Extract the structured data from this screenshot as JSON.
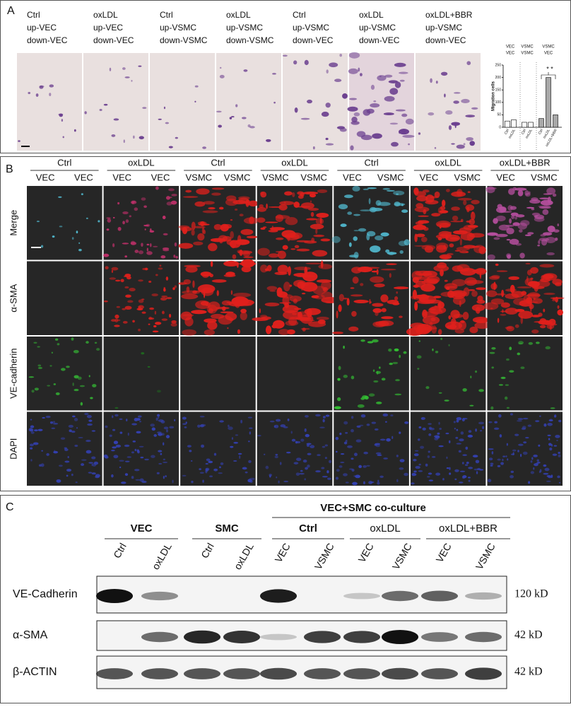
{
  "panel_a": {
    "label": "A",
    "columns": [
      [
        "Ctrl",
        "up-VEC",
        "down-VEC"
      ],
      [
        "oxLDL",
        "up-VEC",
        "down-VEC"
      ],
      [
        "Ctrl",
        "up-VSMC",
        "down-VSMC"
      ],
      [
        "oxLDL",
        "up-VSMC",
        "down-VSMC"
      ],
      [
        "Ctrl",
        "up-VSMC",
        "down-VEC"
      ],
      [
        "oxLDL",
        "up-VSMC",
        "down-VEC"
      ],
      [
        "oxLDL+BBR",
        "up-VSMC",
        "down-VEC"
      ]
    ],
    "chart": {
      "type": "bar",
      "groups": [
        [
          "VEC",
          "VEC"
        ],
        [
          "VSMC",
          "VSMC"
        ],
        [
          "VSMC",
          "VEC"
        ]
      ],
      "ylabel": "Migration cells",
      "ylim": [
        0,
        250
      ],
      "yticks": [
        0,
        50,
        100,
        150,
        200,
        250
      ],
      "categories": [
        "Ctrl",
        "oxLDL",
        "Ctrl",
        "oxLDL",
        "Ctrl",
        "oxLDL",
        "oxLDL+BBR"
      ],
      "values": [
        25,
        30,
        20,
        20,
        35,
        200,
        50
      ],
      "colors": [
        "#ffffff",
        "#ffffff",
        "#ffffff",
        "#ffffff",
        "#a8a8a8",
        "#a8a8a8",
        "#a8a8a8"
      ],
      "annotation": "* *"
    }
  },
  "panel_b": {
    "label": "B",
    "columns": [
      {
        "group": "Ctrl",
        "cells": [
          "VEC",
          "VEC"
        ]
      },
      {
        "group": "oxLDL",
        "cells": [
          "VEC",
          "VEC"
        ]
      },
      {
        "group": "Ctrl",
        "cells": [
          "VSMC",
          "VSMC"
        ]
      },
      {
        "group": "oxLDL",
        "cells": [
          "VSMC",
          "VSMC"
        ]
      },
      {
        "group": "Ctrl",
        "cells": [
          "VEC",
          "VSMC"
        ]
      },
      {
        "group": "oxLDL",
        "cells": [
          "VEC",
          "VSMC"
        ]
      },
      {
        "group": "oxLDL+BBR",
        "cells": [
          "VEC",
          "VSMC"
        ]
      }
    ],
    "rows": [
      "Merge",
      "α-SMA",
      "VE-cadherin",
      "DAPI"
    ]
  },
  "panel_c": {
    "label": "C",
    "coculture": "VEC+SMC co-culture",
    "groups": [
      "VEC",
      "SMC",
      "Ctrl",
      "oxLDL",
      "oxLDL+BBR"
    ],
    "lanes": [
      "Ctrl",
      "oxLDL",
      "Ctrl",
      "oxLDL",
      "VEC",
      "VSMC",
      "VEC",
      "VSMC",
      "VEC",
      "VSMC"
    ],
    "rows": [
      {
        "name": "VE-Cadherin",
        "size": "120 kD"
      },
      {
        "name": "α-SMA",
        "size": "42 kD"
      },
      {
        "name": "β-ACTIN",
        "size": "42 kD"
      }
    ]
  }
}
